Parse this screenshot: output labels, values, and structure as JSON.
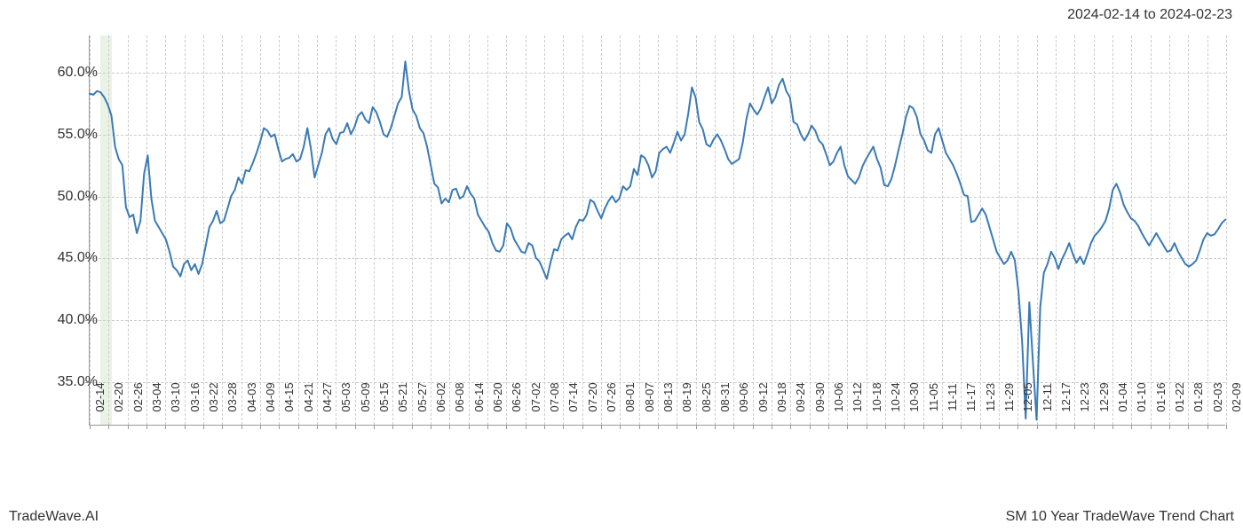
{
  "header": {
    "date_range": "2024-02-14 to 2024-02-23"
  },
  "footer": {
    "left": "TradeWave.AI",
    "right": "SM 10 Year TradeWave Trend Chart"
  },
  "chart": {
    "type": "line",
    "background_color": "#ffffff",
    "grid_color": "#cccccc",
    "axis_color": "#999999",
    "line_color": "#3a7ab5",
    "line_width": 2,
    "highlight_band": {
      "fill": "#d8e8d0",
      "opacity": 0.55,
      "x_start_index": 3,
      "x_end_index": 6
    },
    "y_axis": {
      "min": 31.5,
      "max": 63.0,
      "ticks": [
        35.0,
        40.0,
        45.0,
        50.0,
        55.0,
        60.0
      ],
      "tick_labels": [
        "35.0%",
        "40.0%",
        "45.0%",
        "50.0%",
        "55.0%",
        "60.0%"
      ],
      "label_fontsize": 16,
      "label_color": "#333333"
    },
    "x_axis": {
      "tick_labels": [
        "02-14",
        "02-20",
        "02-26",
        "03-04",
        "03-10",
        "03-16",
        "03-22",
        "03-28",
        "04-03",
        "04-09",
        "04-15",
        "04-21",
        "04-27",
        "05-03",
        "05-09",
        "05-15",
        "05-21",
        "05-27",
        "06-02",
        "06-08",
        "06-14",
        "06-20",
        "06-26",
        "07-02",
        "07-08",
        "07-14",
        "07-20",
        "07-26",
        "08-01",
        "08-07",
        "08-13",
        "08-19",
        "08-25",
        "08-31",
        "09-06",
        "09-12",
        "09-18",
        "09-24",
        "09-30",
        "10-06",
        "10-12",
        "10-18",
        "10-24",
        "10-30",
        "11-05",
        "11-11",
        "11-17",
        "11-23",
        "11-29",
        "12-05",
        "12-11",
        "12-17",
        "12-23",
        "12-29",
        "01-04",
        "01-10",
        "01-16",
        "01-22",
        "01-28",
        "02-03",
        "02-09"
      ],
      "label_fontsize": 13,
      "label_color": "#333333",
      "label_rotation": -90
    },
    "series": {
      "values": [
        58.3,
        58.2,
        58.5,
        58.4,
        58.0,
        57.4,
        56.5,
        54.0,
        53.0,
        52.5,
        49.1,
        48.3,
        48.5,
        47.0,
        48.0,
        51.8,
        53.3,
        49.8,
        48.0,
        47.5,
        47.0,
        46.5,
        45.5,
        44.3,
        44.0,
        43.5,
        44.5,
        44.8,
        44.0,
        44.5,
        43.7,
        44.5,
        46.0,
        47.5,
        48.0,
        48.8,
        47.8,
        48.0,
        49.0,
        50.0,
        50.5,
        51.5,
        51.0,
        52.1,
        52.0,
        52.7,
        53.5,
        54.4,
        55.5,
        55.3,
        54.8,
        55.0,
        53.8,
        52.8,
        53.0,
        53.1,
        53.4,
        52.8,
        53.0,
        54.0,
        55.5,
        53.8,
        51.5,
        52.5,
        53.5,
        55.0,
        55.5,
        54.6,
        54.2,
        55.1,
        55.2,
        55.9,
        55.0,
        55.6,
        56.5,
        56.8,
        56.2,
        55.9,
        57.2,
        56.8,
        56.0,
        55.0,
        54.8,
        55.5,
        56.5,
        57.5,
        58.0,
        60.9,
        58.5,
        57.0,
        56.5,
        55.5,
        55.1,
        54.0,
        52.5,
        51.0,
        50.7,
        49.4,
        49.8,
        49.5,
        50.5,
        50.6,
        49.8,
        50.0,
        50.8,
        50.2,
        49.8,
        48.5,
        48.0,
        47.5,
        47.1,
        46.2,
        45.6,
        45.5,
        46.0,
        47.8,
        47.4,
        46.5,
        46.0,
        45.5,
        45.4,
        46.2,
        46.0,
        45.0,
        44.7,
        44.0,
        43.3,
        44.6,
        45.7,
        45.6,
        46.5,
        46.8,
        47.0,
        46.5,
        47.5,
        48.1,
        48.0,
        48.5,
        49.7,
        49.5,
        48.8,
        48.2,
        49.0,
        49.6,
        50.0,
        49.5,
        49.8,
        50.8,
        50.5,
        50.8,
        52.2,
        51.7,
        53.3,
        53.1,
        52.5,
        51.5,
        52.0,
        53.5,
        53.8,
        54.0,
        53.5,
        54.3,
        55.2,
        54.5,
        55.0,
        56.7,
        58.8,
        58.0,
        56.0,
        55.4,
        54.2,
        54.0,
        54.6,
        55.0,
        54.5,
        53.8,
        53.0,
        52.6,
        52.8,
        53.0,
        54.3,
        56.2,
        57.5,
        57.0,
        56.6,
        57.1,
        58.0,
        58.8,
        57.5,
        58.0,
        59.0,
        59.5,
        58.5,
        58.0,
        56.0,
        55.8,
        55.0,
        54.5,
        55.0,
        55.7,
        55.3,
        54.5,
        54.2,
        53.4,
        52.5,
        52.8,
        53.5,
        54.0,
        52.5,
        51.6,
        51.3,
        51.0,
        51.5,
        52.4,
        53.0,
        53.5,
        54.0,
        53.0,
        52.3,
        50.9,
        50.8,
        51.4,
        52.5,
        53.8,
        55.0,
        56.4,
        57.3,
        57.1,
        56.4,
        55.0,
        54.5,
        53.7,
        53.5,
        55.0,
        55.5,
        54.5,
        53.5,
        53.0,
        52.5,
        51.8,
        51.0,
        50.1,
        50.0,
        47.9,
        48.0,
        48.5,
        49.0,
        48.5,
        47.5,
        46.5,
        45.5,
        45.0,
        44.5,
        44.8,
        45.5,
        44.8,
        42.3,
        38.3,
        32.0,
        41.4,
        36.5,
        31.9,
        41.0,
        43.8,
        44.5,
        45.5,
        45.0,
        44.1,
        44.9,
        45.5,
        46.2,
        45.3,
        44.6,
        45.1,
        44.5,
        45.3,
        46.2,
        46.8,
        47.1,
        47.5,
        48.0,
        49.0,
        50.5,
        51.0,
        50.3,
        49.3,
        48.7,
        48.2,
        48.0,
        47.6,
        47.0,
        46.5,
        46.0,
        46.5,
        47.0,
        46.5,
        46.0,
        45.5,
        45.6,
        46.2,
        45.5,
        45.0,
        44.5,
        44.3,
        44.5,
        44.8,
        45.6,
        46.5,
        47.0,
        46.8,
        46.9,
        47.3,
        47.8,
        48.1
      ]
    }
  }
}
